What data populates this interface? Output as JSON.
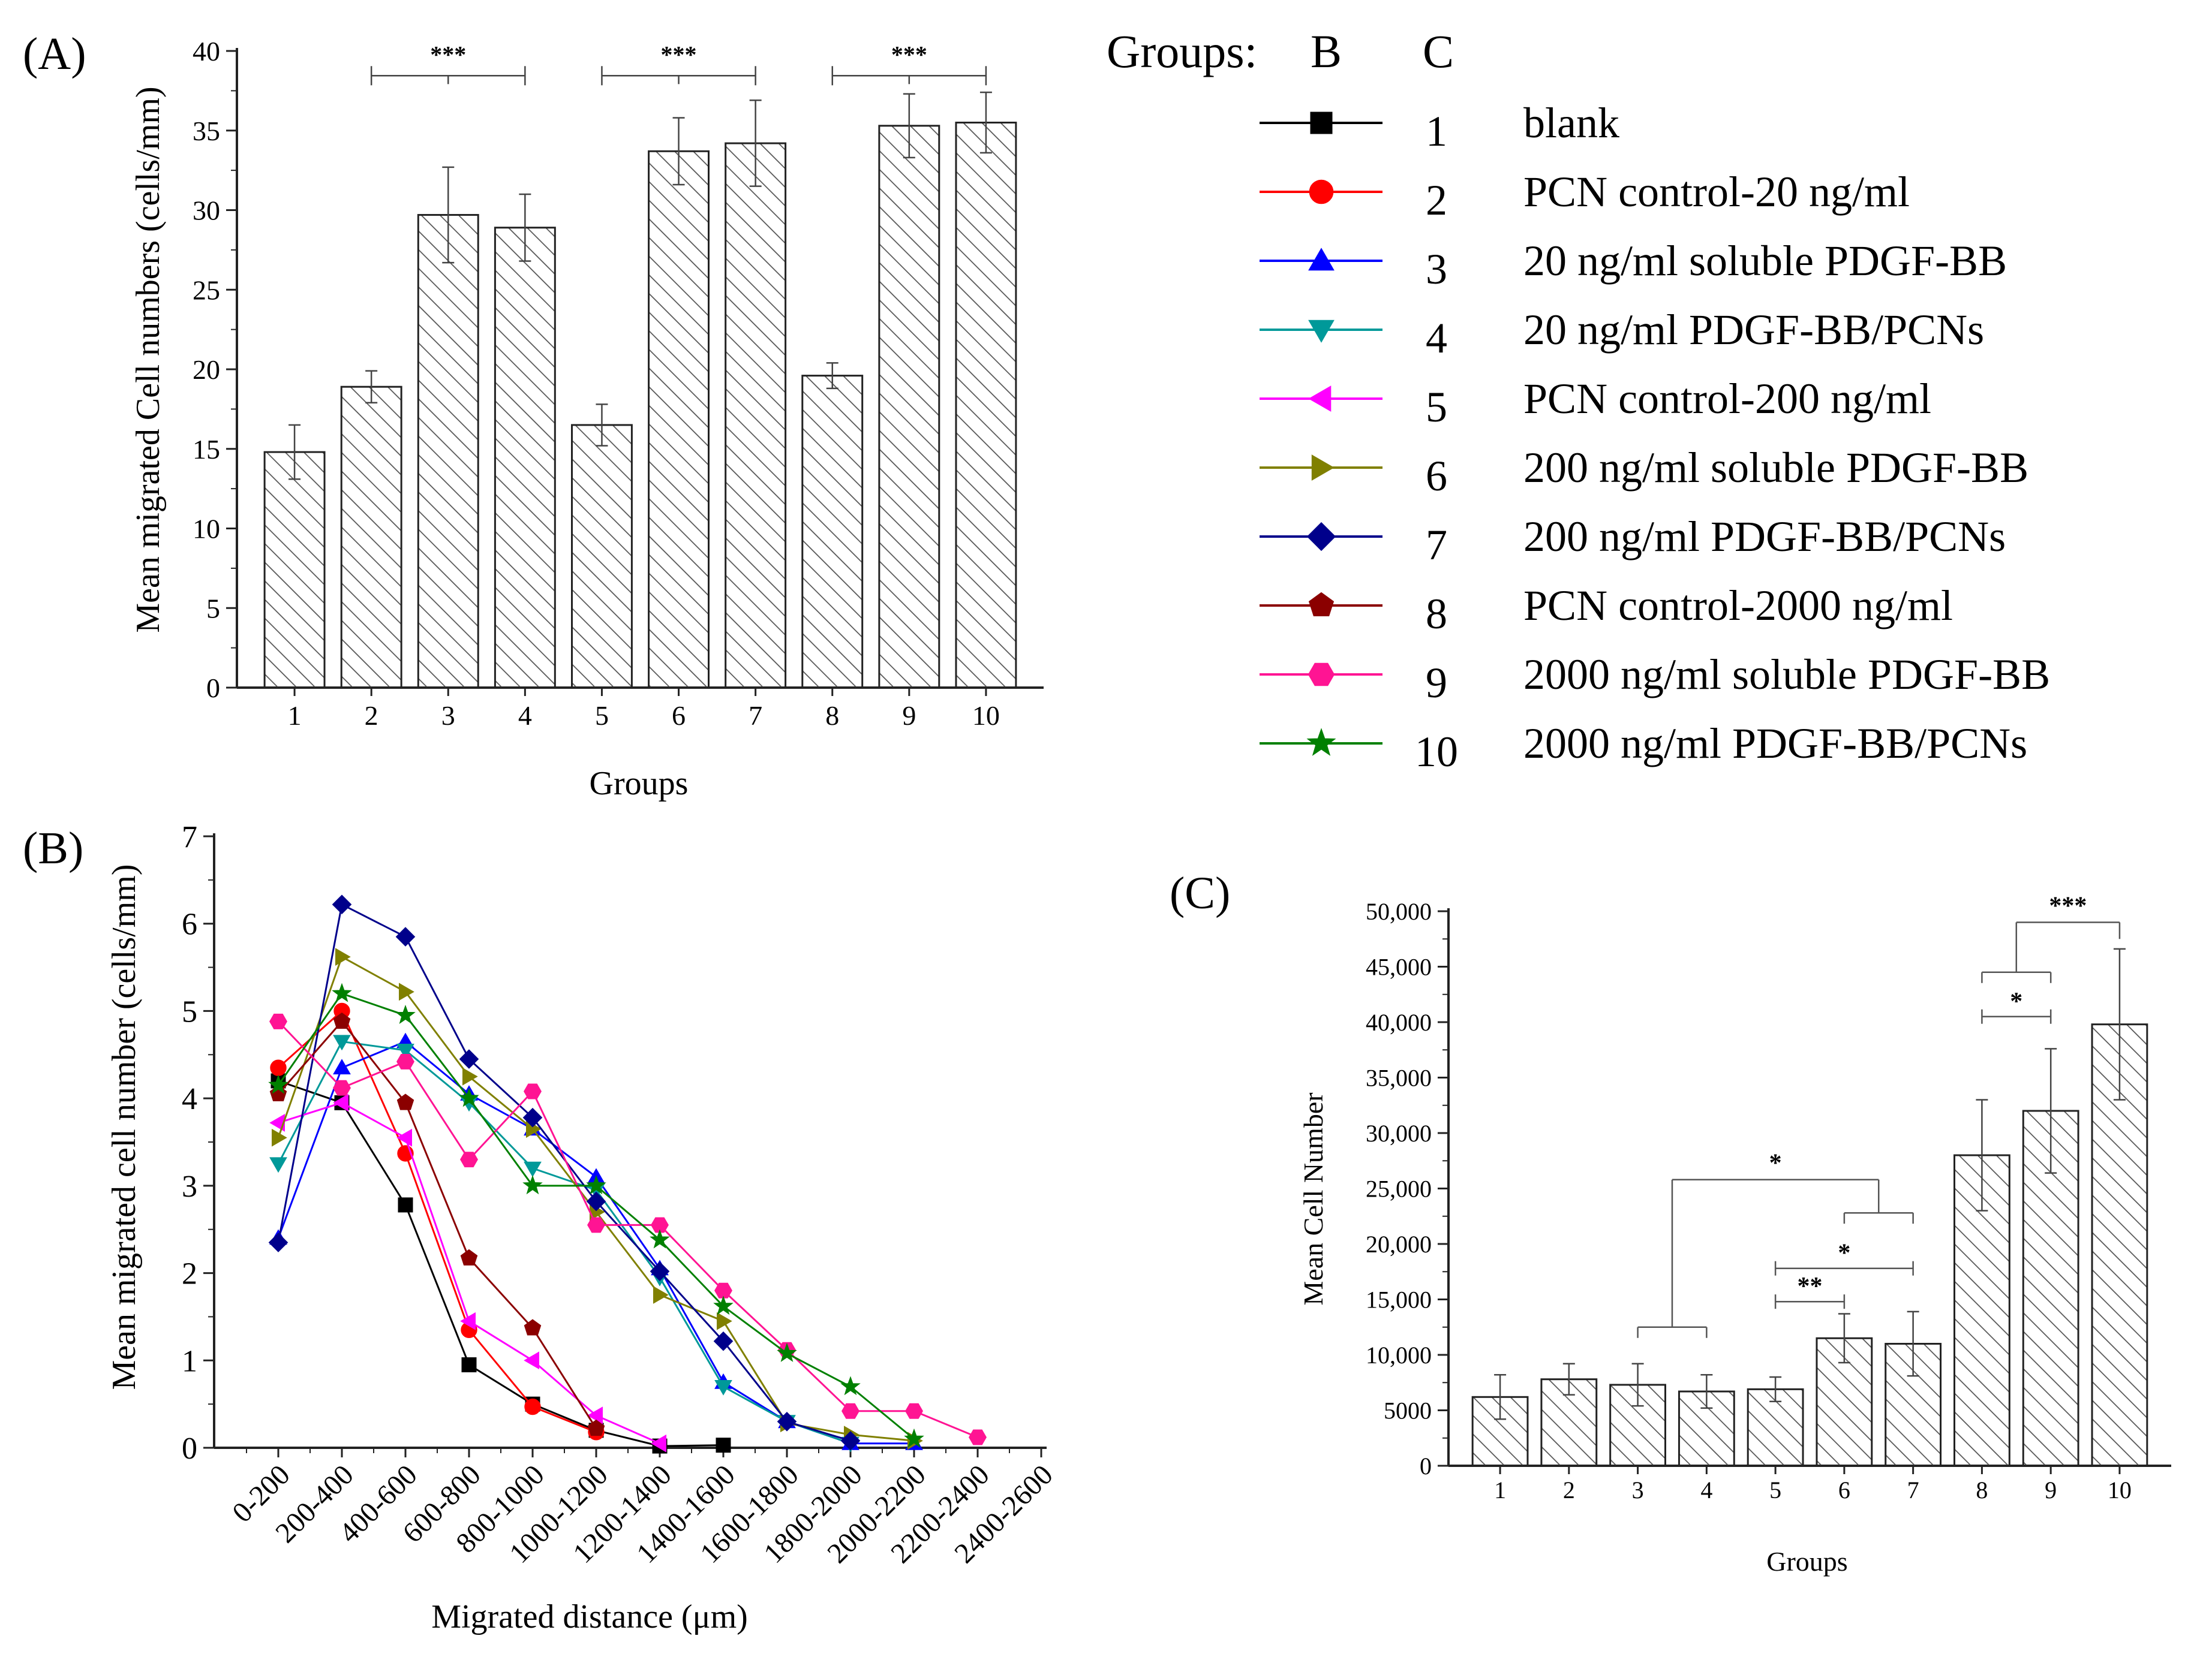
{
  "figure": {
    "colors": {
      "axis": "#222222",
      "bar_fill": "#ffffff",
      "hatch": "#555555",
      "series": [
        "#000000",
        "#ff0000",
        "#0000ff",
        "#009999",
        "#ff00ff",
        "#808000",
        "#00008b",
        "#8b0000",
        "#ff1493",
        "#008000"
      ]
    }
  },
  "legend": {
    "title": "Groups:",
    "col_b": "B",
    "col_c": "C",
    "entries": [
      {
        "number": "1",
        "label": "blank",
        "marker": "square"
      },
      {
        "number": "2",
        "label": "PCN control-20 ng/ml",
        "marker": "circle"
      },
      {
        "number": "3",
        "label": "20 ng/ml soluble PDGF-BB",
        "marker": "triangle-up"
      },
      {
        "number": "4",
        "label": "20 ng/ml PDGF-BB/PCNs",
        "marker": "triangle-down"
      },
      {
        "number": "5",
        "label": "PCN control-200 ng/ml",
        "marker": "triangle-left"
      },
      {
        "number": "6",
        "label": "200 ng/ml soluble PDGF-BB",
        "marker": "triangle-right"
      },
      {
        "number": "7",
        "label": "200 ng/ml PDGF-BB/PCNs",
        "marker": "diamond"
      },
      {
        "number": "8",
        "label": "PCN control-2000 ng/ml",
        "marker": "pentagon"
      },
      {
        "number": "9",
        "label": "2000 ng/ml soluble PDGF-BB",
        "marker": "hexagon"
      },
      {
        "number": "10",
        "label": "2000 ng/ml PDGF-BB/PCNs",
        "marker": "star"
      }
    ]
  },
  "chart_data": [
    {
      "panel": "(A)",
      "type": "bar",
      "title": "",
      "xlabel": "Groups",
      "ylabel": "Mean migrated Cell numbers (cells/mm)",
      "categories": [
        "1",
        "2",
        "3",
        "4",
        "5",
        "6",
        "7",
        "8",
        "9",
        "10"
      ],
      "values": [
        14.8,
        18.9,
        29.7,
        28.9,
        16.5,
        33.7,
        34.2,
        19.6,
        35.3,
        35.5
      ],
      "errors": [
        1.7,
        1.0,
        3.0,
        2.1,
        1.3,
        2.1,
        2.7,
        0.8,
        2.0,
        1.9
      ],
      "ylim": [
        0,
        40
      ],
      "yticks": [
        "0",
        "5",
        "10",
        "15",
        "20",
        "25",
        "30",
        "35",
        "40"
      ],
      "grid": false,
      "significance": [
        {
          "from": 2,
          "to": 4,
          "label": "***",
          "level": 39.5
        },
        {
          "from": 5,
          "to": 7,
          "label": "***",
          "level": 39.5
        },
        {
          "from": 8,
          "to": 10,
          "label": "***",
          "level": 39.5
        }
      ]
    },
    {
      "panel": "(B)",
      "type": "line",
      "title": "",
      "xlabel": "Migrated distance (μm)",
      "ylabel": "Mean migrated cell number (cells/mm)",
      "categories": [
        "0-200",
        "200-400",
        "400-600",
        "600-800",
        "800-1000",
        "1000-1200",
        "1200-1400",
        "1400-1600",
        "1600-1800",
        "1800-2000",
        "2000-2200",
        "2200-2400",
        "2400-2600"
      ],
      "ylim": [
        0,
        7
      ],
      "yticks": [
        "0",
        "1",
        "2",
        "3",
        "4",
        "5",
        "6",
        "7"
      ],
      "grid": false,
      "series": [
        {
          "name": "1",
          "values": [
            4.2,
            3.95,
            2.78,
            0.95,
            0.5,
            0.2,
            0.02,
            0.03,
            null,
            null,
            null,
            null,
            null
          ]
        },
        {
          "name": "2",
          "values": [
            4.35,
            5.0,
            3.37,
            1.35,
            0.47,
            0.18,
            null,
            null,
            null,
            null,
            null,
            null,
            null
          ]
        },
        {
          "name": "3",
          "values": [
            2.4,
            4.35,
            4.65,
            4.05,
            3.65,
            3.1,
            2.05,
            0.75,
            0.3,
            0.05,
            0.05,
            null,
            null
          ]
        },
        {
          "name": "4",
          "values": [
            3.25,
            4.65,
            4.55,
            3.95,
            3.2,
            2.95,
            1.95,
            0.7,
            0.3,
            0.05,
            null,
            null,
            null
          ]
        },
        {
          "name": "5",
          "values": [
            3.72,
            3.95,
            3.55,
            1.45,
            1.0,
            0.37,
            0.05,
            null,
            null,
            null,
            null,
            null,
            null
          ]
        },
        {
          "name": "6",
          "values": [
            3.55,
            5.62,
            5.22,
            4.25,
            3.65,
            2.7,
            1.75,
            1.45,
            0.28,
            0.15,
            0.08,
            null,
            null
          ]
        },
        {
          "name": "7",
          "values": [
            2.35,
            6.22,
            5.85,
            4.45,
            3.78,
            2.82,
            2.02,
            1.22,
            0.3,
            0.08,
            null,
            null,
            null
          ]
        },
        {
          "name": "8",
          "values": [
            4.05,
            4.88,
            3.95,
            2.17,
            1.37,
            0.22,
            null,
            null,
            null,
            null,
            null,
            null,
            null
          ]
        },
        {
          "name": "9",
          "values": [
            4.88,
            4.12,
            4.42,
            3.3,
            4.08,
            2.55,
            2.55,
            1.8,
            1.12,
            0.42,
            0.42,
            0.12,
            null
          ]
        },
        {
          "name": "10",
          "values": [
            4.15,
            5.2,
            4.95,
            4.0,
            3.0,
            3.0,
            2.38,
            1.62,
            1.08,
            0.7,
            0.1,
            null,
            null
          ]
        }
      ]
    },
    {
      "panel": "(C)",
      "type": "bar",
      "title": "",
      "xlabel": "Groups",
      "ylabel": "Mean Cell Number",
      "categories": [
        "1",
        "2",
        "3",
        "4",
        "5",
        "6",
        "7",
        "8",
        "9",
        "10"
      ],
      "values": [
        6200,
        7800,
        7300,
        6700,
        6900,
        11500,
        11000,
        28000,
        32000,
        39800
      ],
      "errors": [
        2000,
        1400,
        1900,
        1500,
        1100,
        2200,
        2900,
        5000,
        5600,
        6800
      ],
      "ylim": [
        0,
        50000
      ],
      "yticks": [
        "0",
        "5000",
        "10,000",
        "15,000",
        "20,000",
        "25,000",
        "30,000",
        "35,000",
        "40,000",
        "45,000",
        "50,000"
      ],
      "grid": false,
      "significance": [
        {
          "label": "*",
          "left_span": [
            3,
            4
          ],
          "right_span": [
            6,
            7
          ],
          "left_level": 12500,
          "right_level": 22800,
          "top": 25800
        },
        {
          "label": "*",
          "from": 5,
          "to": 7,
          "level": 17800
        },
        {
          "label": "**",
          "from": 5,
          "to": 6,
          "level": 14800
        },
        {
          "label": "*",
          "from": 8,
          "to": 9,
          "level": 40500
        },
        {
          "label": "***",
          "left_span": [
            8,
            9
          ],
          "right_span": [
            10,
            10
          ],
          "left_level": 44500,
          "right_level": 47500,
          "top": 49000
        }
      ]
    }
  ]
}
